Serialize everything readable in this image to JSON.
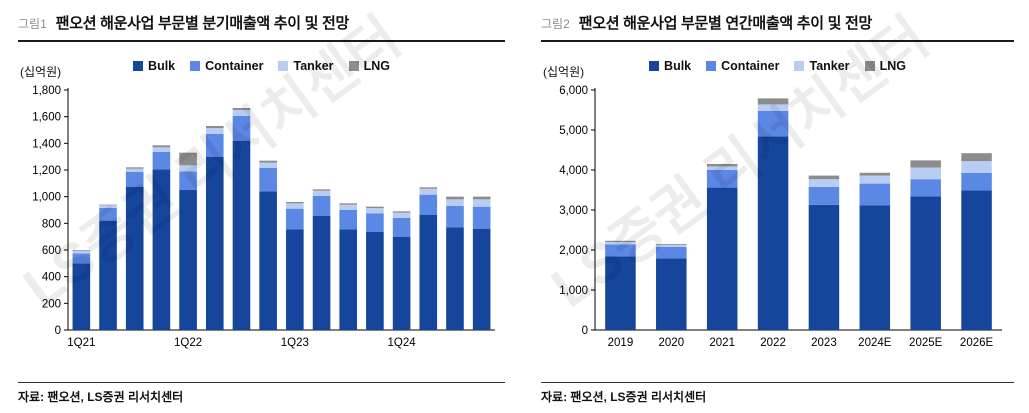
{
  "page": {
    "watermark": "LS증권 리서치센터"
  },
  "figure1": {
    "tag": "그림1",
    "title": "팬오션 해운사업 부문별 분기매출액 추이 및 전망",
    "unit": "(십억원)",
    "source": "자료: 팬오션, LS증권 리서치센터"
  },
  "figure2": {
    "tag": "그림2",
    "title": "팬오션 해운사업 부문별 연간매출액 추이 및 전망",
    "unit": "(십억원)",
    "source": "자료: 팬오션, LS증권 리서치센터"
  },
  "chart_data": [
    {
      "type": "bar",
      "stacked": true,
      "title": "팬오션 해운사업 부문별 분기매출액 추이 및 전망",
      "ylabel": "(십억원)",
      "ylim": [
        0,
        1800
      ],
      "ytick_step": 200,
      "grid": false,
      "legend_position": "top",
      "categories": [
        "1Q21",
        "2Q21",
        "3Q21",
        "4Q21",
        "1Q22",
        "2Q22",
        "3Q22",
        "4Q22",
        "1Q23",
        "2Q23",
        "3Q23",
        "4Q23",
        "1Q24",
        "2Q24",
        "3Q24",
        "4Q24"
      ],
      "xticks_shown": [
        "1Q21",
        "1Q22",
        "1Q23",
        "1Q24"
      ],
      "series": [
        {
          "name": "Bulk",
          "color": "#16459c",
          "values": [
            500,
            820,
            1075,
            1205,
            1050,
            1300,
            1420,
            1040,
            755,
            855,
            755,
            735,
            700,
            865,
            770,
            760
          ]
        },
        {
          "name": "Container",
          "color": "#5b87e5",
          "values": [
            75,
            95,
            110,
            130,
            140,
            170,
            185,
            175,
            155,
            150,
            145,
            140,
            140,
            150,
            160,
            165
          ]
        },
        {
          "name": "Tanker",
          "color": "#b9cdf2",
          "values": [
            20,
            20,
            25,
            35,
            45,
            45,
            45,
            40,
            40,
            40,
            40,
            40,
            40,
            45,
            50,
            55
          ]
        },
        {
          "name": "LNG",
          "color": "#8c8c8c",
          "values": [
            5,
            5,
            10,
            15,
            95,
            15,
            15,
            15,
            10,
            10,
            10,
            10,
            10,
            10,
            20,
            20
          ]
        }
      ]
    },
    {
      "type": "bar",
      "stacked": true,
      "title": "팬오션 해운사업 부문별 연간매출액 추이 및 전망",
      "ylabel": "(십억원)",
      "ylim": [
        0,
        6000
      ],
      "ytick_step": 1000,
      "grid": false,
      "legend_position": "top",
      "categories": [
        "2019",
        "2020",
        "2021",
        "2022",
        "2023",
        "2024E",
        "2025E",
        "2026E"
      ],
      "xticks_shown": [
        "2019",
        "2020",
        "2021",
        "2022",
        "2023",
        "2024E",
        "2025E",
        "2026E"
      ],
      "series": [
        {
          "name": "Bulk",
          "color": "#16459c",
          "values": [
            1840,
            1790,
            3560,
            4840,
            3130,
            3120,
            3340,
            3490
          ]
        },
        {
          "name": "Container",
          "color": "#5b87e5",
          "values": [
            300,
            290,
            440,
            640,
            450,
            540,
            430,
            440
          ]
        },
        {
          "name": "Tanker",
          "color": "#b9cdf2",
          "values": [
            60,
            50,
            90,
            160,
            190,
            200,
            290,
            290
          ]
        },
        {
          "name": "LNG",
          "color": "#8c8c8c",
          "values": [
            30,
            20,
            60,
            150,
            90,
            70,
            180,
            200
          ]
        }
      ]
    }
  ]
}
